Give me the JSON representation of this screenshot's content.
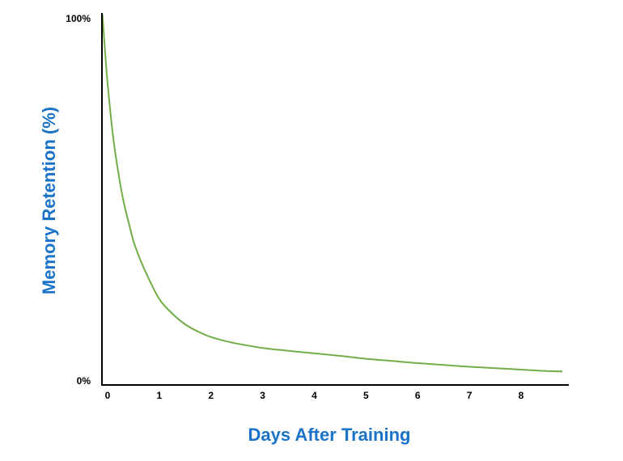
{
  "chart_data": {
    "type": "line",
    "title": "",
    "xlabel": "Days After Training",
    "ylabel": "Memory Retention (%)",
    "xlim": [
      -0.1,
      8.8
    ],
    "ylim": [
      0,
      100
    ],
    "x_ticks": [
      0,
      1,
      2,
      3,
      4,
      5,
      6,
      7,
      8
    ],
    "y_tick_labels": [
      {
        "value": 0,
        "label": "0%"
      },
      {
        "value": 100,
        "label": "100%"
      }
    ],
    "grid": false,
    "colors": {
      "line": "#70ad47",
      "axis": "#000000",
      "label": "#1a73c8"
    },
    "series": [
      {
        "x": [
          -0.1,
          -0.05,
          0.0,
          0.1,
          0.2,
          0.3,
          0.4,
          0.5,
          0.6,
          0.75,
          1.0,
          1.25,
          1.5,
          1.75,
          2.0,
          2.25,
          2.5,
          3.0,
          3.5,
          4.0,
          4.5,
          5.0,
          5.5,
          6.0,
          6.5,
          7.0,
          7.5,
          8.0,
          8.5,
          8.8
        ],
        "y": [
          100,
          90,
          81,
          67,
          57,
          49,
          43,
          37.5,
          33.5,
          28.5,
          21.5,
          17.5,
          14.5,
          12.5,
          11,
          10,
          9.2,
          8,
          7.2,
          6.5,
          5.8,
          5,
          4.4,
          3.8,
          3.3,
          2.8,
          2.4,
          2,
          1.6,
          1.5
        ]
      }
    ]
  }
}
